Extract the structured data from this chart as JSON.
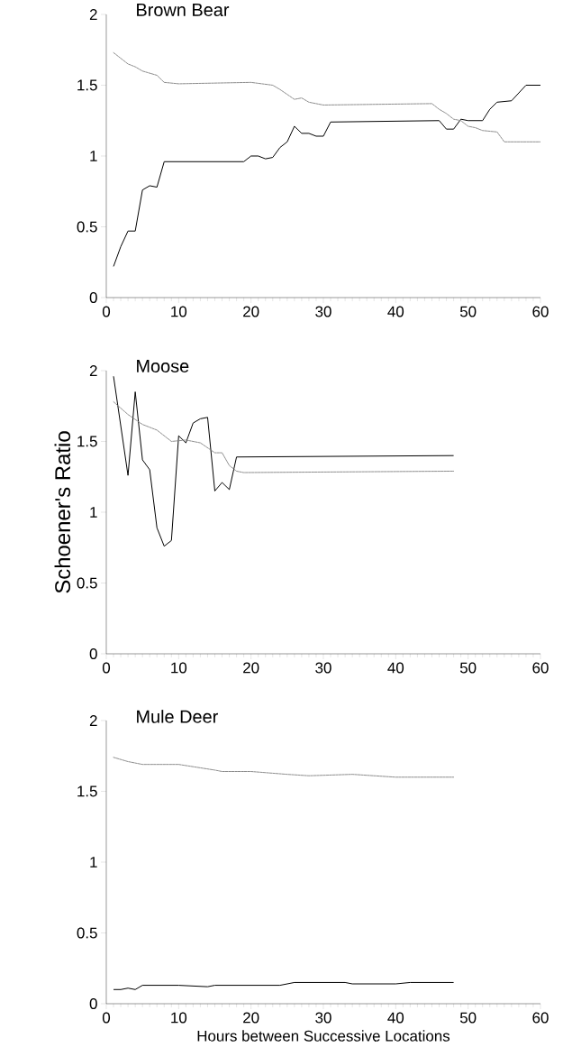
{
  "chart_data": [
    {
      "type": "line",
      "title": "Brown Bear",
      "xlim": [
        0,
        60
      ],
      "ylim": [
        0,
        2
      ],
      "xticks": [
        0,
        10,
        20,
        30,
        40,
        50,
        60
      ],
      "yticks": [
        0,
        0.5,
        1,
        1.5,
        2
      ],
      "series": [
        {
          "color": "#000000",
          "line_style": "solid",
          "x": [
            1,
            2,
            3,
            4,
            5,
            6,
            7,
            8,
            19,
            20,
            21,
            22,
            23,
            24,
            25,
            26,
            27,
            28,
            29,
            30,
            31,
            46,
            47,
            48,
            49,
            50,
            52,
            53,
            54,
            56,
            58,
            60
          ],
          "values": [
            0.22,
            0.36,
            0.47,
            0.47,
            0.76,
            0.79,
            0.78,
            0.96,
            0.96,
            1.0,
            1.0,
            0.98,
            0.99,
            1.06,
            1.1,
            1.21,
            1.16,
            1.16,
            1.14,
            1.14,
            1.24,
            1.25,
            1.19,
            1.19,
            1.26,
            1.25,
            1.25,
            1.33,
            1.38,
            1.39,
            1.5,
            1.5
          ]
        },
        {
          "color": "#808080",
          "line_style": "dotted",
          "x": [
            1,
            2,
            3,
            4,
            5,
            7,
            8,
            10,
            20,
            23,
            24,
            26,
            27,
            28,
            30,
            45,
            46,
            47,
            48,
            49,
            50,
            51,
            52,
            54,
            55,
            60
          ],
          "values": [
            1.73,
            1.69,
            1.65,
            1.63,
            1.6,
            1.57,
            1.52,
            1.51,
            1.52,
            1.5,
            1.47,
            1.4,
            1.41,
            1.38,
            1.36,
            1.37,
            1.33,
            1.3,
            1.26,
            1.25,
            1.21,
            1.2,
            1.18,
            1.17,
            1.1,
            1.1
          ]
        }
      ]
    },
    {
      "type": "line",
      "title": "Moose",
      "ylabel": "Schoener's Ratio",
      "xlim": [
        0,
        60
      ],
      "ylim": [
        0,
        2
      ],
      "xticks": [
        0,
        10,
        20,
        30,
        40,
        50,
        60
      ],
      "yticks": [
        0,
        0.5,
        1,
        1.5,
        2
      ],
      "series": [
        {
          "color": "#000000",
          "line_style": "solid",
          "x": [
            1,
            3,
            4,
            5,
            6,
            7,
            8,
            9,
            10,
            11,
            12,
            13,
            14,
            15,
            16,
            17,
            18,
            48
          ],
          "values": [
            1.96,
            1.26,
            1.85,
            1.37,
            1.3,
            0.89,
            0.76,
            0.8,
            1.54,
            1.49,
            1.63,
            1.66,
            1.67,
            1.15,
            1.21,
            1.16,
            1.39,
            1.4
          ]
        },
        {
          "color": "#808080",
          "line_style": "dotted",
          "x": [
            1,
            3,
            5,
            7,
            9,
            11,
            13,
            15,
            16,
            17,
            18,
            19,
            48
          ],
          "values": [
            1.78,
            1.69,
            1.62,
            1.58,
            1.5,
            1.51,
            1.49,
            1.42,
            1.42,
            1.33,
            1.29,
            1.28,
            1.29
          ]
        }
      ]
    },
    {
      "type": "line",
      "title": "Mule Deer",
      "xlabel": "Hours between Successive Locations",
      "xlim": [
        0,
        60
      ],
      "ylim": [
        0,
        2
      ],
      "xticks": [
        0,
        10,
        20,
        30,
        40,
        50,
        60
      ],
      "yticks": [
        0,
        0.5,
        1,
        1.5,
        2
      ],
      "series": [
        {
          "color": "#000000",
          "line_style": "solid",
          "x": [
            1,
            2,
            3,
            4,
            5,
            10,
            14,
            15,
            20,
            24,
            26,
            28,
            33,
            34,
            40,
            42,
            48
          ],
          "values": [
            0.1,
            0.1,
            0.11,
            0.1,
            0.13,
            0.13,
            0.12,
            0.13,
            0.13,
            0.13,
            0.15,
            0.15,
            0.15,
            0.14,
            0.14,
            0.15,
            0.15
          ]
        },
        {
          "color": "#808080",
          "line_style": "dotted",
          "x": [
            1,
            3,
            5,
            10,
            15,
            16,
            20,
            25,
            28,
            34,
            40,
            48
          ],
          "values": [
            1.74,
            1.71,
            1.69,
            1.69,
            1.65,
            1.64,
            1.64,
            1.62,
            1.61,
            1.62,
            1.6,
            1.6
          ]
        }
      ]
    }
  ]
}
